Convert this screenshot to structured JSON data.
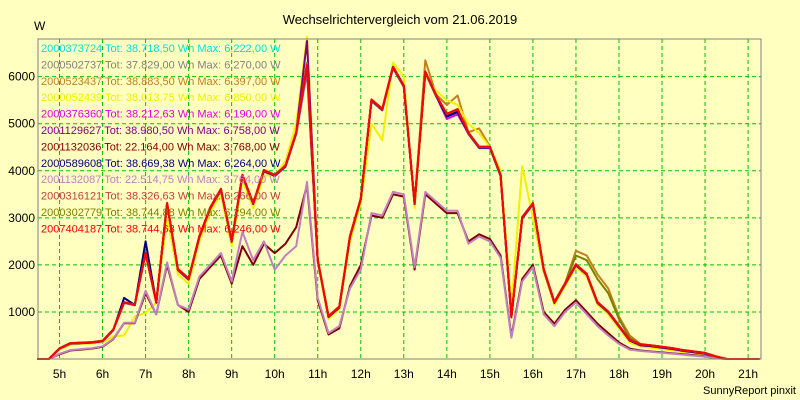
{
  "chart_data": {
    "type": "line",
    "title": "Wechselrichtervergleich vom 21.06.2019",
    "ylabel": "W",
    "credit": "SunnyReport pinxit",
    "xlim": [
      4.5,
      21.3
    ],
    "ylim": [
      0,
      6800
    ],
    "x_ticks": [
      {
        "v": 5,
        "label": "5h"
      },
      {
        "v": 6,
        "label": "6h"
      },
      {
        "v": 7,
        "label": "7h"
      },
      {
        "v": 8,
        "label": "8h"
      },
      {
        "v": 9,
        "label": "9h"
      },
      {
        "v": 10,
        "label": "10h"
      },
      {
        "v": 11,
        "label": "11h"
      },
      {
        "v": 12,
        "label": "12h"
      },
      {
        "v": 13,
        "label": "13h"
      },
      {
        "v": 14,
        "label": "14h"
      },
      {
        "v": 15,
        "label": "15h"
      },
      {
        "v": 16,
        "label": "16h"
      },
      {
        "v": 17,
        "label": "17h"
      },
      {
        "v": 18,
        "label": "18h"
      },
      {
        "v": 19,
        "label": "19h"
      },
      {
        "v": 20,
        "label": "20h"
      },
      {
        "v": 21,
        "label": "21h"
      }
    ],
    "y_ticks": [
      {
        "v": 1000,
        "label": "1000"
      },
      {
        "v": 2000,
        "label": "2000"
      },
      {
        "v": 3000,
        "label": "3000"
      },
      {
        "v": 4000,
        "label": "4000"
      },
      {
        "v": 5000,
        "label": "5000"
      },
      {
        "v": 6000,
        "label": "6000"
      }
    ],
    "grid": true,
    "legend_position": "top-left",
    "x": [
      4.5,
      4.75,
      5,
      5.25,
      5.5,
      5.75,
      6,
      6.25,
      6.5,
      6.75,
      7,
      7.25,
      7.5,
      7.75,
      8,
      8.25,
      8.5,
      8.75,
      9,
      9.25,
      9.5,
      9.75,
      10,
      10.25,
      10.5,
      10.75,
      11,
      11.25,
      11.5,
      11.75,
      12,
      12.25,
      12.5,
      12.75,
      13,
      13.25,
      13.5,
      13.75,
      14,
      14.25,
      14.5,
      14.75,
      15,
      15.25,
      15.5,
      15.75,
      16,
      16.25,
      16.5,
      16.75,
      17,
      17.25,
      17.5,
      17.75,
      18,
      18.25,
      18.5,
      18.75,
      19,
      19.25,
      19.5,
      19.75,
      20,
      20.25,
      20.5,
      20.75,
      21,
      21.25
    ],
    "series": [
      {
        "legend": "2000373724 Tot: 38.718,50 Wh Max: 6.222,00 W",
        "color": "#00e0e0",
        "values": [
          0,
          0,
          220,
          330,
          340,
          350,
          380,
          620,
          1200,
          1150,
          2250,
          1200,
          3300,
          1900,
          1700,
          2600,
          3200,
          3600,
          2500,
          3900,
          3300,
          4000,
          3900,
          4100,
          4800,
          6100,
          2100,
          900,
          1100,
          2600,
          3400,
          5500,
          5300,
          6200,
          5800,
          3300,
          6100,
          5600,
          5200,
          5300,
          4800,
          4500,
          4500,
          3900,
          900,
          3000,
          3300,
          1900,
          1200,
          1600,
          2000,
          1800,
          1200,
          1000,
          700,
          400,
          300,
          280,
          250,
          220,
          180,
          150,
          120,
          50,
          0,
          0,
          0,
          0
        ]
      },
      {
        "legend": "2000502737 Tot: 37.829,00 Wh Max: 6.270,00 W",
        "color": "#808080",
        "values": [
          0,
          0,
          210,
          320,
          330,
          340,
          370,
          610,
          1190,
          1140,
          2240,
          1190,
          3280,
          1880,
          1680,
          2580,
          3180,
          3580,
          2480,
          3880,
          3280,
          3980,
          3880,
          4080,
          4780,
          6100,
          2080,
          880,
          1080,
          2580,
          3380,
          5480,
          5280,
          6180,
          5780,
          3280,
          6080,
          5580,
          5180,
          5280,
          4780,
          4480,
          4480,
          3880,
          880,
          2980,
          3280,
          1880,
          1180,
          1580,
          1980,
          1780,
          1180,
          980,
          680,
          380,
          280,
          260,
          230,
          200,
          160,
          130,
          100,
          40,
          0,
          0,
          0,
          0
        ]
      },
      {
        "legend": "2000523437 Tot: 38.883,50 Wh Max: 6.397,00 W",
        "color": "#c08020",
        "values": [
          0,
          0,
          230,
          340,
          350,
          360,
          390,
          630,
          1210,
          1160,
          2260,
          1210,
          3320,
          1920,
          1720,
          2620,
          3220,
          3620,
          2520,
          3920,
          3320,
          4020,
          3920,
          4120,
          4820,
          6200,
          2120,
          920,
          1120,
          2620,
          3420,
          5520,
          5320,
          6220,
          5820,
          3320,
          6350,
          5620,
          5400,
          5600,
          4820,
          4900,
          4520,
          3920,
          920,
          3020,
          3320,
          1920,
          1220,
          1620,
          2300,
          2200,
          1800,
          1500,
          900,
          500,
          320,
          290,
          260,
          230,
          190,
          160,
          130,
          60,
          0,
          0,
          0,
          0
        ]
      },
      {
        "legend": "2000052439 Tot: 38.013,75 Wh Max: 6.850,00 W",
        "color": "#f0f000",
        "values": [
          0,
          0,
          200,
          300,
          320,
          330,
          350,
          480,
          500,
          900,
          980,
          1200,
          3000,
          1800,
          1600,
          2500,
          3100,
          3500,
          2400,
          3800,
          3200,
          3900,
          3900,
          4200,
          5000,
          6850,
          2050,
          850,
          1050,
          2500,
          3300,
          5000,
          4650,
          6300,
          6000,
          3200,
          6000,
          5700,
          5500,
          5400,
          5000,
          4800,
          4500,
          4000,
          1100,
          4100,
          3000,
          1850,
          1150,
          1550,
          1950,
          1750,
          1150,
          950,
          650,
          350,
          260,
          240,
          210,
          180,
          150,
          120,
          90,
          30,
          0,
          0,
          0,
          0
        ]
      },
      {
        "legend": "2000376360 Tot: 38.212,63 Wh Max: 6.190,00 W",
        "color": "#e000e0",
        "values": [
          0,
          0,
          215,
          325,
          335,
          345,
          375,
          615,
          1195,
          1145,
          2245,
          1195,
          3290,
          1890,
          1690,
          2590,
          3190,
          3590,
          2490,
          3890,
          3290,
          3990,
          3890,
          4090,
          4790,
          6190,
          2090,
          890,
          1090,
          2590,
          3390,
          5490,
          5290,
          6190,
          5790,
          3290,
          6090,
          5590,
          5100,
          5200,
          4790,
          4490,
          4490,
          3890,
          890,
          2990,
          3290,
          1890,
          1190,
          1590,
          1990,
          1790,
          1190,
          990,
          690,
          390,
          290,
          270,
          240,
          210,
          170,
          140,
          110,
          45,
          0,
          0,
          0,
          0
        ]
      },
      {
        "legend": "2001129627 Tot: 38.980,50 Wh Max: 6.758,00 W",
        "color": "#800080",
        "values": [
          0,
          0,
          225,
          335,
          345,
          355,
          385,
          625,
          1205,
          1155,
          2255,
          1205,
          3310,
          1910,
          1710,
          2610,
          3210,
          3610,
          2510,
          3910,
          3310,
          4010,
          3910,
          4110,
          4810,
          6758,
          2110,
          910,
          1110,
          2610,
          3410,
          5510,
          5310,
          6210,
          5810,
          3310,
          6110,
          5610,
          5150,
          5250,
          4810,
          4510,
          4510,
          3910,
          910,
          3010,
          3310,
          1910,
          1210,
          1610,
          2010,
          1810,
          1210,
          1010,
          710,
          410,
          310,
          290,
          260,
          230,
          190,
          160,
          130,
          55,
          0,
          0,
          0,
          0
        ]
      },
      {
        "legend": "2001132036 Tot: 22.164,00 Wh Max: 3.768,00 W",
        "color": "#800000",
        "values": [
          0,
          0,
          100,
          180,
          200,
          220,
          260,
          420,
          760,
          760,
          1400,
          950,
          2000,
          1150,
          1000,
          1700,
          1950,
          2200,
          1600,
          2400,
          2000,
          2450,
          2250,
          2450,
          2800,
          3700,
          1250,
          520,
          650,
          1550,
          2000,
          3050,
          3000,
          3500,
          3450,
          1900,
          3500,
          3300,
          3100,
          3100,
          2500,
          2650,
          2550,
          2200,
          480,
          1700,
          2000,
          1000,
          750,
          1050,
          1250,
          1000,
          750,
          550,
          350,
          220,
          180,
          160,
          140,
          120,
          100,
          80,
          60,
          20,
          0,
          0,
          0,
          0
        ]
      },
      {
        "legend": "2000589608 Tot: 38.669,38 Wh Max: 6.264,00 W",
        "color": "#000080",
        "values": [
          0,
          0,
          218,
          328,
          338,
          348,
          378,
          618,
          1298,
          1148,
          2498,
          1198,
          3295,
          1895,
          1695,
          2595,
          3195,
          3595,
          2495,
          3895,
          3295,
          3995,
          3895,
          4095,
          4795,
          6264,
          2095,
          895,
          1095,
          2595,
          3395,
          5495,
          5295,
          6195,
          5795,
          3295,
          6095,
          5595,
          5150,
          5250,
          4795,
          4495,
          4495,
          3895,
          895,
          2995,
          3295,
          1895,
          1195,
          1595,
          1995,
          1795,
          1195,
          995,
          695,
          395,
          295,
          275,
          245,
          215,
          175,
          145,
          115,
          48,
          0,
          0,
          0,
          0
        ]
      },
      {
        "legend": "2001132087 Tot: 22.514,75 Wh Max: 3.764,00 W",
        "color": "#c080c0",
        "values": [
          0,
          0,
          110,
          190,
          210,
          230,
          270,
          430,
          770,
          770,
          1450,
          950,
          2050,
          1150,
          1050,
          1750,
          2000,
          2250,
          1650,
          2700,
          2100,
          2500,
          1900,
          2200,
          2400,
          3764,
          1300,
          550,
          700,
          1500,
          1900,
          3100,
          3050,
          3550,
          3500,
          1950,
          3550,
          3350,
          3150,
          3150,
          2450,
          2600,
          2500,
          2150,
          450,
          1650,
          1950,
          950,
          700,
          1000,
          1200,
          950,
          700,
          500,
          320,
          200,
          170,
          150,
          130,
          110,
          90,
          70,
          50,
          15,
          0,
          0,
          0,
          0
        ]
      },
      {
        "legend": "2000316121 Tot: 38.326,63 Wh Max: 6.266,00 W",
        "color": "#c04040",
        "values": [
          0,
          0,
          222,
          332,
          342,
          352,
          382,
          622,
          1202,
          1152,
          2252,
          1202,
          3305,
          1905,
          1705,
          2605,
          3205,
          3605,
          2505,
          3905,
          3305,
          4005,
          3905,
          4105,
          4805,
          6266,
          2105,
          905,
          1105,
          2605,
          3405,
          5505,
          5305,
          6205,
          5805,
          3305,
          6105,
          5605,
          5205,
          5305,
          4805,
          4505,
          4505,
          3905,
          905,
          3005,
          3305,
          1905,
          1205,
          1605,
          2005,
          1805,
          1205,
          1005,
          705,
          405,
          305,
          285,
          255,
          225,
          185,
          155,
          125,
          52,
          0,
          0,
          0,
          0
        ]
      },
      {
        "legend": "2000302779 Tot: 38.744,88 Wh Max: 6.294,00 W",
        "color": "#808000",
        "values": [
          0,
          0,
          224,
          334,
          344,
          354,
          384,
          624,
          1204,
          1154,
          2254,
          1204,
          3308,
          1908,
          1708,
          2608,
          3208,
          3608,
          2508,
          3908,
          3308,
          4008,
          3908,
          4108,
          4808,
          6294,
          2108,
          908,
          1108,
          2608,
          3408,
          5508,
          5308,
          6208,
          5808,
          3308,
          6108,
          5608,
          5208,
          5308,
          4808,
          4508,
          4508,
          3908,
          908,
          3008,
          3308,
          1908,
          1208,
          1608,
          2200,
          2100,
          1700,
          1400,
          850,
          450,
          310,
          288,
          258,
          228,
          188,
          158,
          128,
          54,
          0,
          0,
          0,
          0
        ]
      },
      {
        "legend": "2007404187 Tot: 38.744,63 Wh Max: 6.246,00 W",
        "color": "#ff0000",
        "values": [
          0,
          0,
          225,
          335,
          345,
          355,
          385,
          625,
          1205,
          1155,
          2255,
          1205,
          3310,
          1910,
          1710,
          2610,
          3210,
          3610,
          2510,
          3910,
          3310,
          4010,
          3910,
          4110,
          4810,
          6246,
          2110,
          910,
          1110,
          2610,
          3410,
          5510,
          5310,
          6210,
          5810,
          3310,
          6110,
          5610,
          5210,
          5310,
          4810,
          4510,
          4510,
          3910,
          910,
          3010,
          3310,
          1910,
          1210,
          1610,
          2010,
          1810,
          1210,
          1010,
          710,
          410,
          310,
          290,
          260,
          230,
          190,
          160,
          130,
          55,
          0,
          0,
          0,
          0
        ]
      }
    ]
  }
}
